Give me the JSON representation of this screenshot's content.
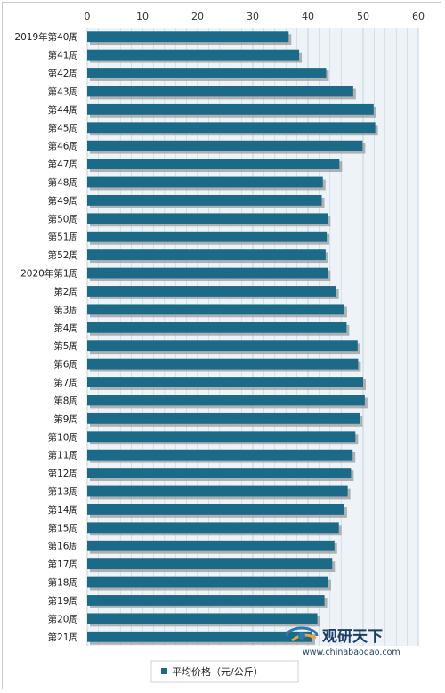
{
  "chart_data": {
    "type": "bar",
    "orientation": "horizontal",
    "categories": [
      "2019年第40周",
      "第41周",
      "第42周",
      "第43周",
      "第44周",
      "第45周",
      "第46周",
      "第47周",
      "第48周",
      "第49周",
      "第50周",
      "第51周",
      "第52周",
      "2020年第1周",
      "第2周",
      "第3周",
      "第4周",
      "第5周",
      "第6周",
      "第7周",
      "第8周",
      "第9周",
      "第10周",
      "第11周",
      "第12周",
      "第13周",
      "第14周",
      "第15周",
      "第16周",
      "第17周",
      "第18周",
      "第19周",
      "第20周",
      "第21周"
    ],
    "series": [
      {
        "name": "平均价格（元/公斤）",
        "values": [
          36.5,
          38.4,
          43.3,
          48.2,
          51.9,
          52.2,
          49.9,
          45.7,
          42.7,
          42.5,
          43.6,
          43.4,
          43.2,
          43.6,
          45.1,
          46.6,
          47.0,
          49.0,
          49.1,
          50.0,
          50.3,
          49.4,
          48.6,
          48.1,
          47.8,
          47.2,
          46.6,
          45.6,
          44.8,
          44.4,
          43.7,
          43.0,
          41.7,
          40.8
        ]
      }
    ],
    "xlim": [
      0,
      60
    ],
    "xticks": [
      0,
      10,
      20,
      30,
      40,
      50,
      60
    ],
    "grid": true,
    "legend_position": "bottom",
    "colors": {
      "bar": "#1b6a88",
      "shadow": "#9a9a9a",
      "grid": "#c7d3dc",
      "plot_bg": "#eef3f8"
    }
  },
  "logo": {
    "text_cn": "观研天下",
    "url": "www.chinabaogao.com"
  }
}
